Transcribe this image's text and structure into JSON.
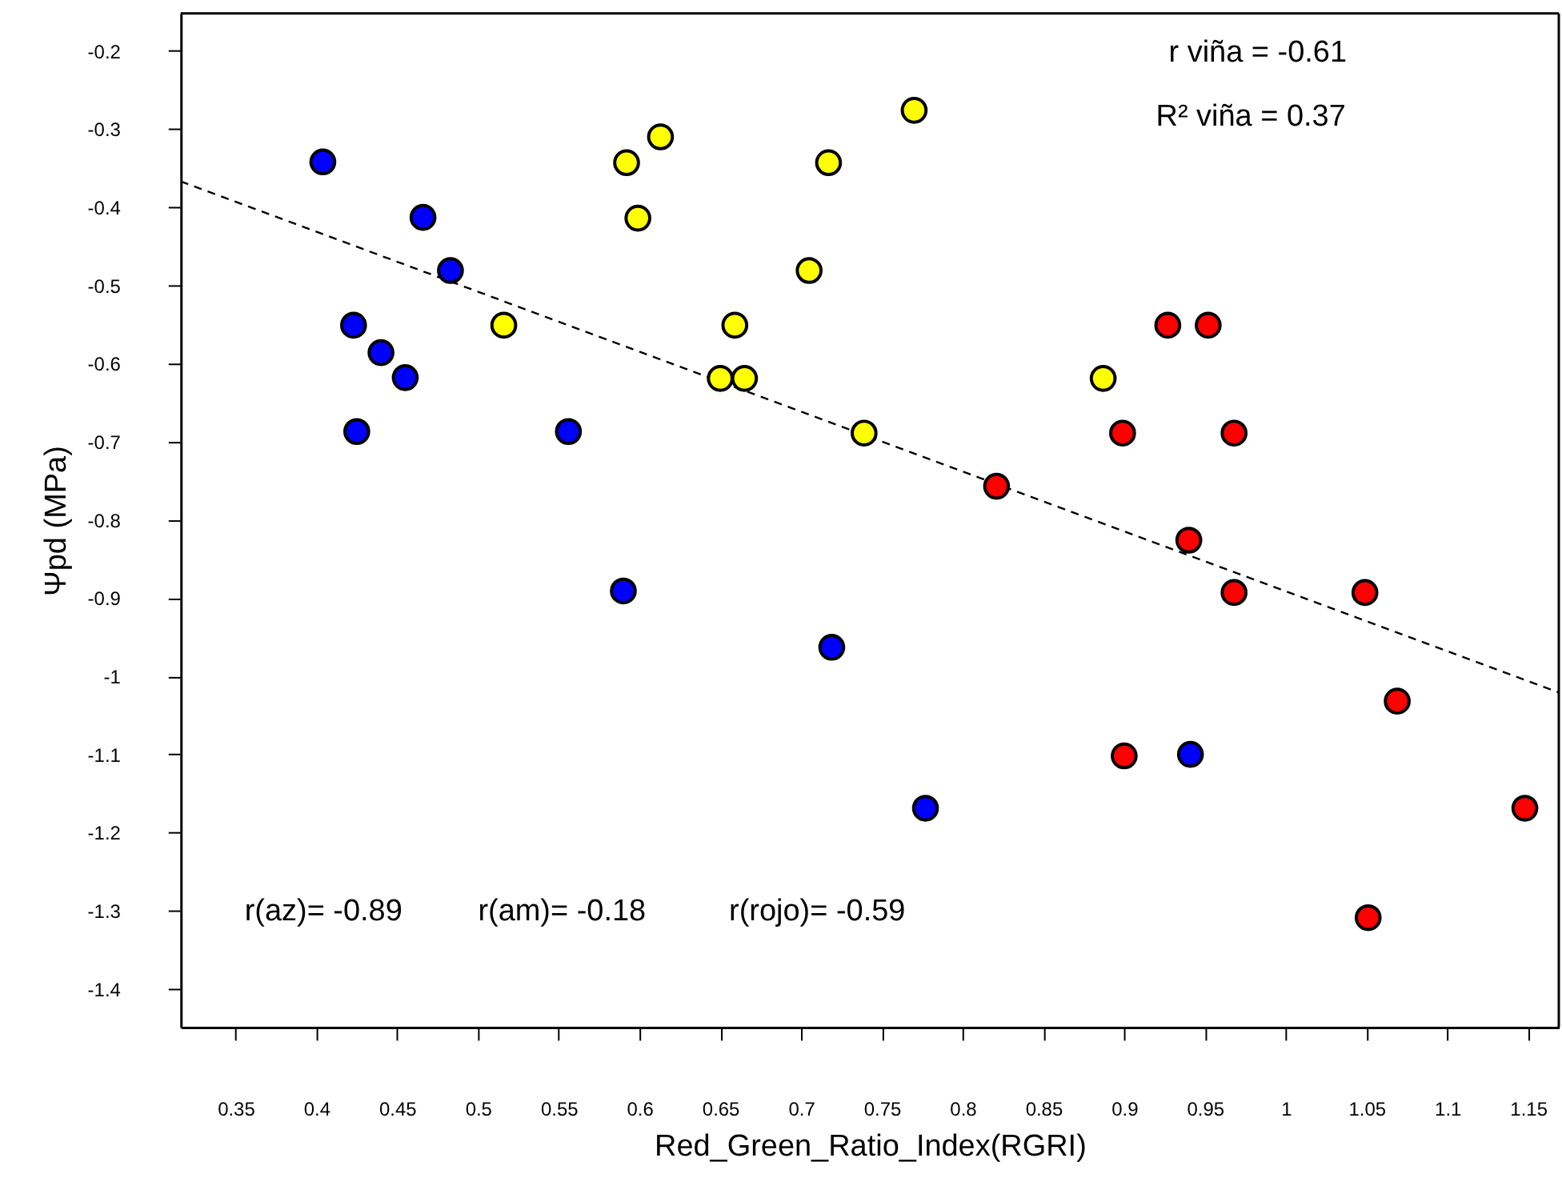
{
  "chart_data": {
    "type": "scatter",
    "xlabel": "Red_Green_Ratio_Index(RGRI)",
    "ylabel": "Ψpd (MPa)",
    "xlim": [
      0.316,
      1.169
    ],
    "ylim": [
      -1.449,
      -0.152
    ],
    "xticks": [
      0.35,
      0.4,
      0.45,
      0.5,
      0.55,
      0.6,
      0.65,
      0.7,
      0.75,
      0.8,
      0.85,
      0.9,
      0.95,
      1,
      1.05,
      1.1,
      1.15
    ],
    "yticks": [
      -0.2,
      -0.3,
      -0.4,
      -0.5,
      -0.6,
      -0.7,
      -0.8,
      -0.9,
      -1,
      -1.1,
      -1.2,
      -1.3,
      -1.4
    ],
    "grid": false,
    "annotations": [
      "r viña =  -0.61",
      "R² viña =  0.37",
      "r(az)=  -0.89",
      "r(am)=  -0.18",
      "r(rojo)=  -0.59"
    ],
    "series": [
      {
        "color": "#0000ff",
        "marker": "circle",
        "x": [
          0.404,
          0.466,
          0.483,
          0.423,
          0.44,
          0.455,
          0.425,
          0.556,
          0.59,
          0.719,
          0.777,
          0.941
        ],
        "values": [
          -0.342,
          -0.413,
          -0.481,
          -0.551,
          -0.586,
          -0.618,
          -0.687,
          -0.687,
          -0.891,
          -0.963,
          -1.169,
          -1.1
        ]
      },
      {
        "color": "#ffff00",
        "marker": "circle",
        "x": [
          0.516,
          0.592,
          0.613,
          0.599,
          0.65,
          0.665,
          0.659,
          0.705,
          0.717,
          0.77,
          0.739,
          0.887
        ],
        "values": [
          -0.551,
          -0.343,
          -0.31,
          -0.414,
          -0.619,
          -0.619,
          -0.551,
          -0.481,
          -0.343,
          -0.276,
          -0.689,
          -0.619
        ]
      },
      {
        "color": "#ff0000",
        "marker": "circle",
        "x": [
          0.821,
          0.899,
          0.9,
          0.927,
          0.952,
          0.94,
          0.968,
          0.968,
          1.049,
          1.069,
          1.051,
          1.148
        ],
        "values": [
          -0.757,
          -0.689,
          -1.102,
          -0.551,
          -0.551,
          -0.826,
          -0.689,
          -0.893,
          -0.893,
          -1.032,
          -1.309,
          -1.169
        ]
      },
      {
        "type": "line",
        "color": "#000000",
        "line_style": "dashed",
        "marker": "none",
        "x": [
          0.316,
          1.169
        ],
        "values": [
          -0.367,
          -1.021
        ]
      }
    ]
  }
}
